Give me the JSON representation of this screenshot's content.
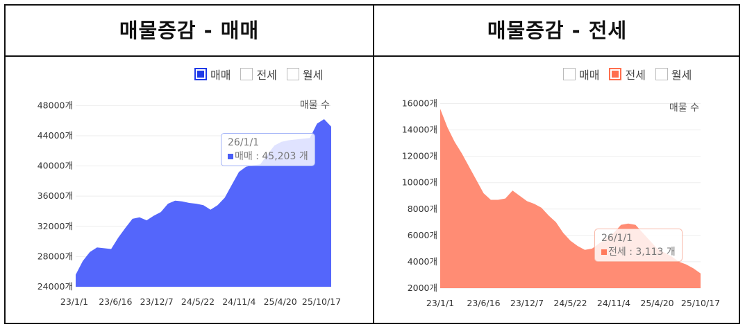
{
  "panels": [
    {
      "title": "매물증감 - 매매",
      "legend": [
        {
          "label": "매매",
          "active": true,
          "color": "#1f3ae8"
        },
        {
          "label": "전세",
          "active": false,
          "color": "#ff7a5c"
        },
        {
          "label": "월세",
          "active": false,
          "color": "#888888"
        }
      ],
      "series_label": "매물 수",
      "tooltip": {
        "date": "26/1/1",
        "text": "매매 : 45,203 개",
        "color": "#4a5ef6",
        "border": "#9fb0f7"
      },
      "yticks": [
        "48000개",
        "44000개",
        "40000개",
        "36000개",
        "32000개",
        "28000개",
        "24000개"
      ],
      "xticks": [
        "23/1/1",
        "23/6/16",
        "23/12/7",
        "24/5/22",
        "24/11/4",
        "25/4/20",
        "25/10/17"
      ]
    },
    {
      "title": "매물증감 - 전세",
      "legend": [
        {
          "label": "매매",
          "active": false,
          "color": "#1f3ae8"
        },
        {
          "label": "전세",
          "active": true,
          "color": "#ff6e4d"
        },
        {
          "label": "월세",
          "active": false,
          "color": "#888888"
        }
      ],
      "series_label": "매물 수",
      "tooltip": {
        "date": "26/1/1",
        "text": "전세 : 3,113 개",
        "color": "#ff7a5c",
        "border": "#f8b8a8"
      },
      "yticks": [
        "16000개",
        "14000개",
        "12000개",
        "10000개",
        "8000개",
        "6000개",
        "4000개",
        "2000개"
      ],
      "xticks": [
        "23/1/1",
        "23/6/16",
        "23/12/7",
        "24/5/22",
        "24/11/4",
        "25/4/20",
        "25/10/17"
      ]
    }
  ],
  "chart_data": [
    {
      "type": "area",
      "title": "매물증감 - 매매",
      "series": [
        {
          "name": "매매",
          "color": "#5466fb",
          "x": [
            "23/1/1",
            "23/2/1",
            "23/3/1",
            "23/4/1",
            "23/5/1",
            "23/6/1",
            "23/7/1",
            "23/8/1",
            "23/9/1",
            "23/10/1",
            "23/11/1",
            "23/12/1",
            "24/1/1",
            "24/2/1",
            "24/3/1",
            "24/4/1",
            "24/5/1",
            "24/6/1",
            "24/7/1",
            "24/8/1",
            "24/9/1",
            "24/10/1",
            "24/11/1",
            "24/12/1",
            "25/1/1",
            "25/2/1",
            "25/3/1",
            "25/4/1",
            "25/5/1",
            "25/6/1",
            "25/7/1",
            "25/8/1",
            "25/9/1",
            "25/10/1",
            "25/11/1",
            "25/12/1",
            "26/1/1"
          ],
          "values": [
            25600,
            27400,
            28600,
            29200,
            29100,
            29000,
            30500,
            31800,
            33000,
            33200,
            32800,
            33400,
            33900,
            35000,
            35400,
            35300,
            35100,
            35000,
            34800,
            34200,
            34800,
            35800,
            37500,
            39200,
            39900,
            40100,
            40200,
            41500,
            42700,
            43200,
            43400,
            43500,
            43600,
            43700,
            45600,
            46200,
            45203
          ]
        }
      ],
      "ylim": [
        24000,
        49500
      ],
      "yticks": [
        24000,
        28000,
        32000,
        36000,
        40000,
        44000,
        48000
      ]
    },
    {
      "type": "area",
      "title": "매물증감 - 전세",
      "series": [
        {
          "name": "전세",
          "color": "#ff8c74",
          "x": [
            "23/1/1",
            "23/2/1",
            "23/3/1",
            "23/4/1",
            "23/5/1",
            "23/6/1",
            "23/7/1",
            "23/8/1",
            "23/9/1",
            "23/10/1",
            "23/11/1",
            "23/12/1",
            "24/1/1",
            "24/2/1",
            "24/3/1",
            "24/4/1",
            "24/5/1",
            "24/6/1",
            "24/7/1",
            "24/8/1",
            "24/9/1",
            "24/10/1",
            "24/11/1",
            "24/12/1",
            "25/1/1",
            "25/2/1",
            "25/3/1",
            "25/4/1",
            "25/5/1",
            "25/6/1",
            "25/7/1",
            "25/8/1",
            "25/9/1",
            "25/10/1",
            "25/11/1",
            "25/12/1",
            "26/1/1"
          ],
          "values": [
            15600,
            14200,
            13100,
            12200,
            11200,
            10200,
            9200,
            8700,
            8700,
            8800,
            9400,
            9000,
            8600,
            8400,
            8100,
            7500,
            7000,
            6200,
            5600,
            5200,
            4900,
            5000,
            5400,
            5800,
            6200,
            6800,
            6900,
            6800,
            6200,
            5600,
            5000,
            4700,
            4400,
            4000,
            3800,
            3500,
            3113
          ]
        }
      ],
      "ylim": [
        2000,
        16500
      ],
      "yticks": [
        2000,
        4000,
        6000,
        8000,
        10000,
        12000,
        14000,
        16000
      ]
    }
  ]
}
